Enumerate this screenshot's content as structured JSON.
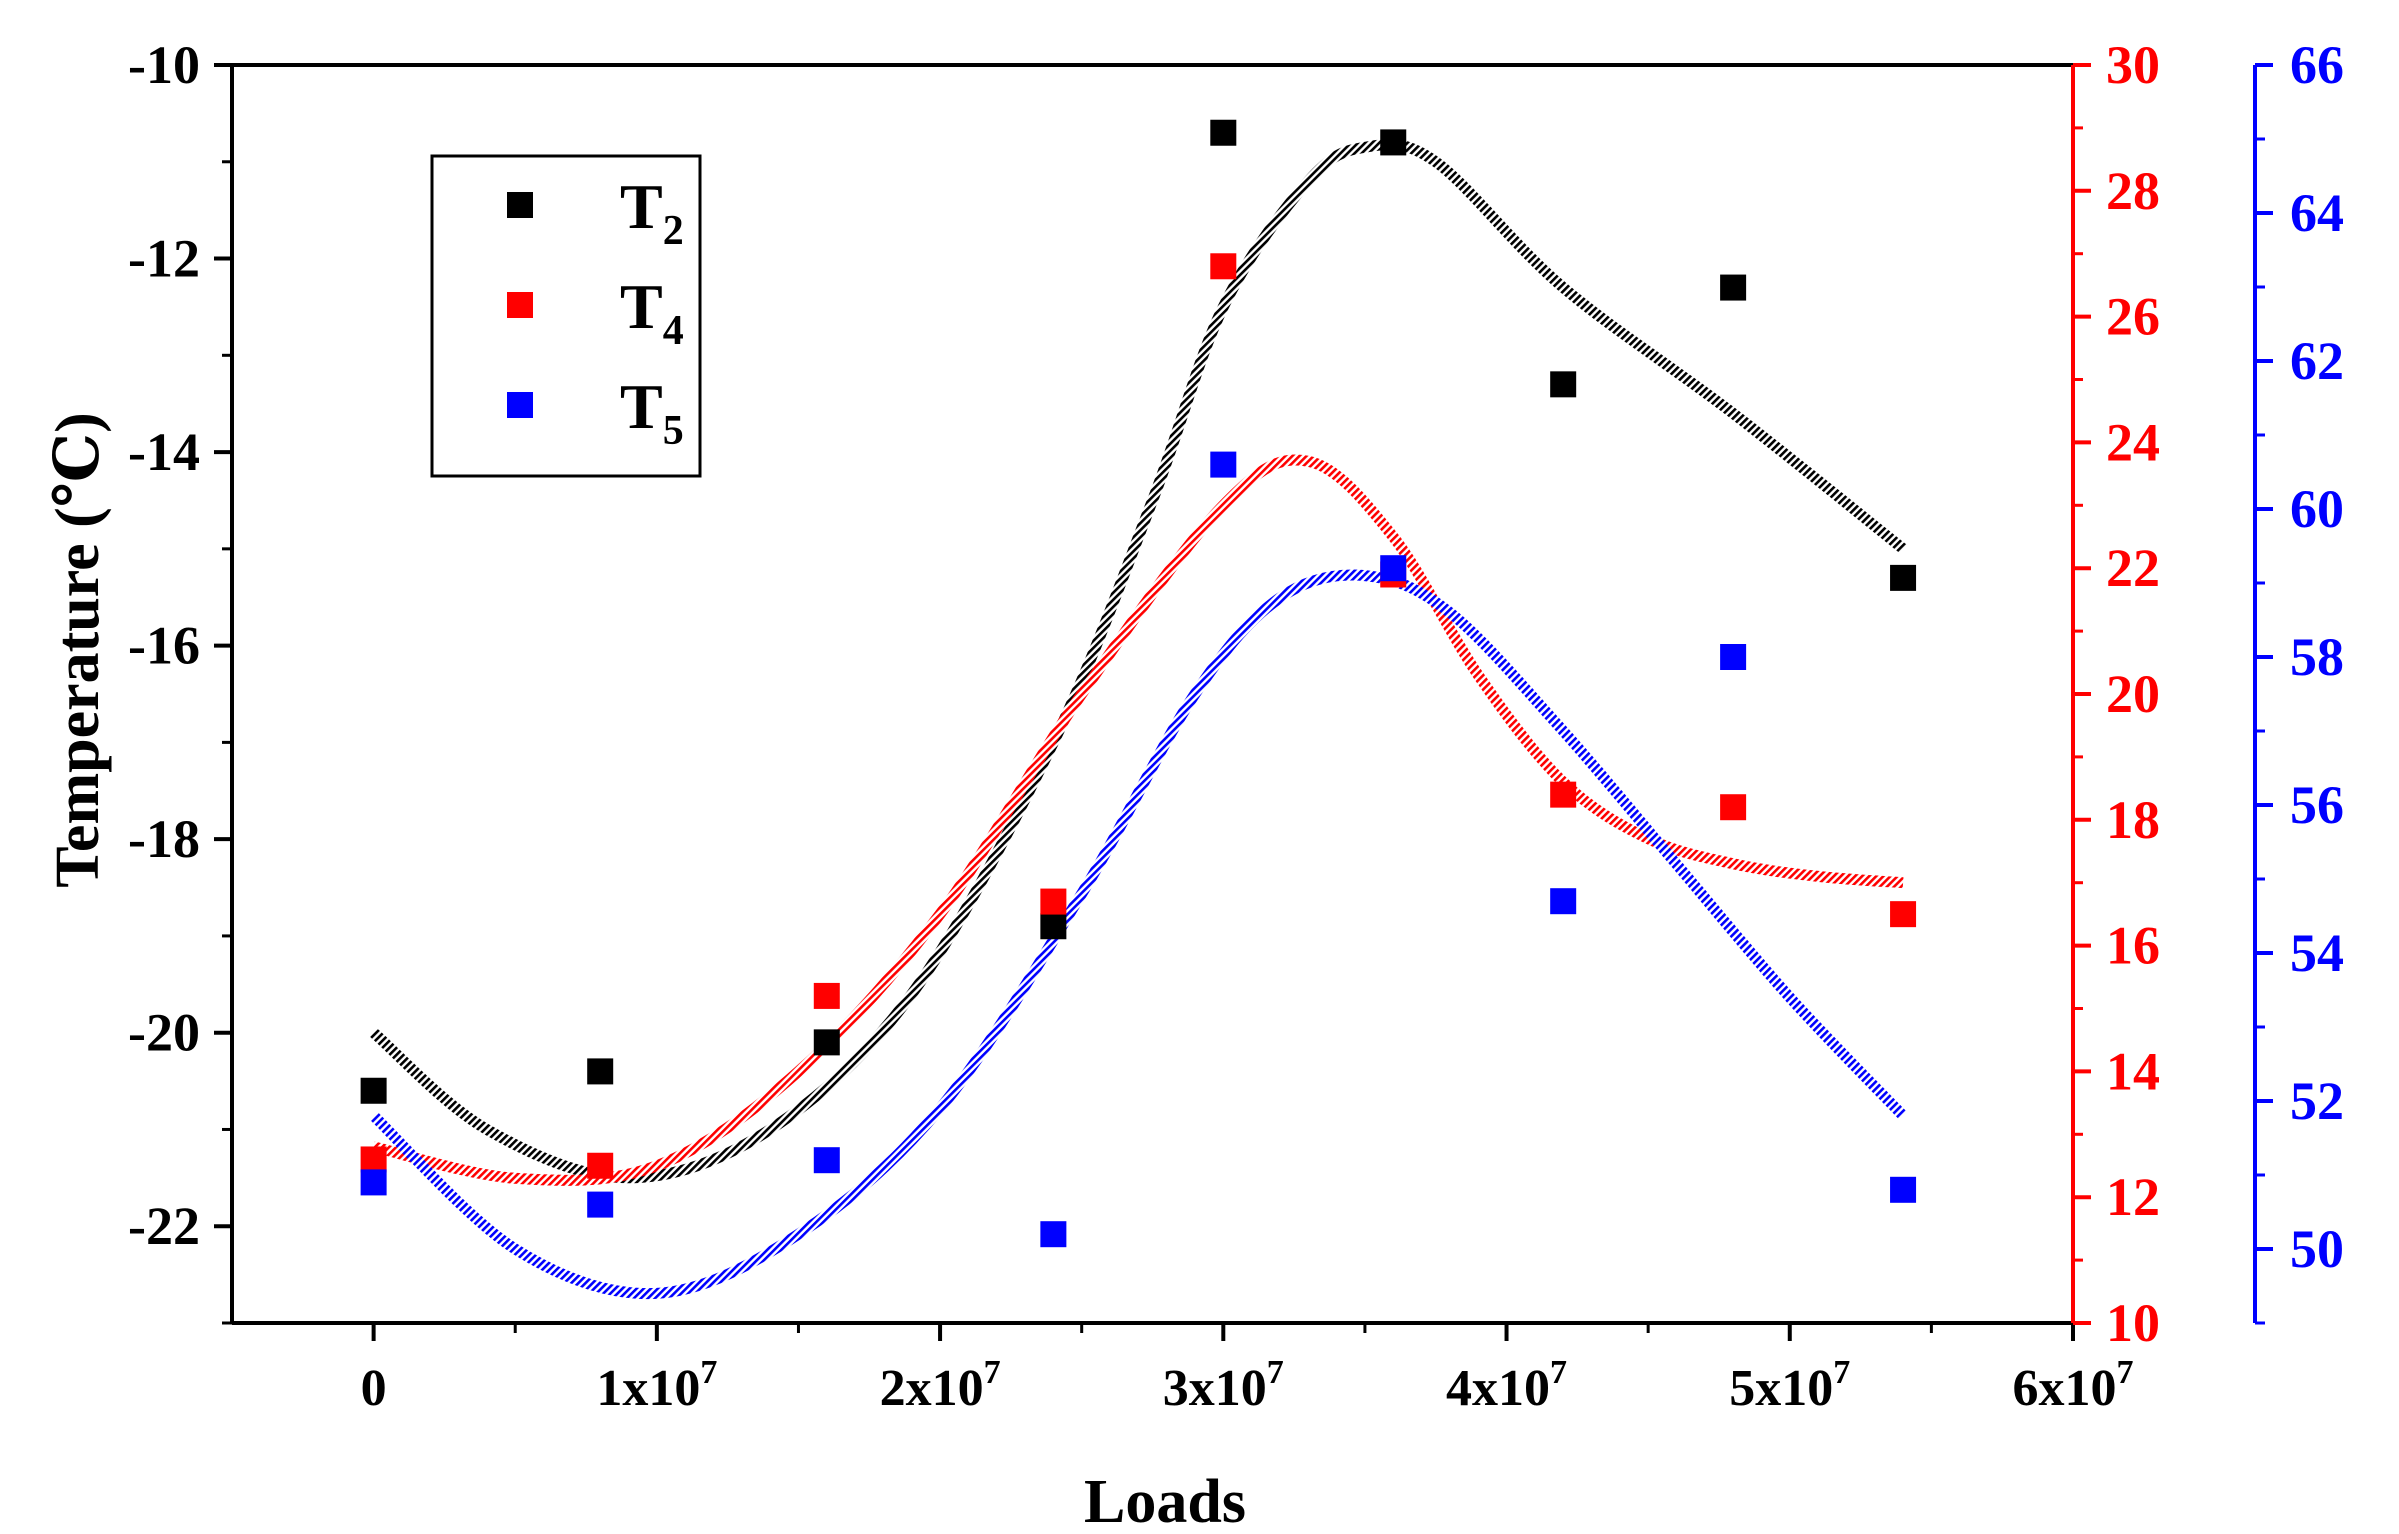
{
  "chart_data": {
    "type": "scatter",
    "title": "",
    "xlabel": "Loads",
    "ylabel": "Temperature (℃)",
    "xlim": [
      -5000000,
      60000000
    ],
    "x_ticks": [
      {
        "value": 0,
        "base": "0",
        "exp": ""
      },
      {
        "value": 10000000,
        "base": "1x10",
        "exp": "7"
      },
      {
        "value": 20000000,
        "base": "2x10",
        "exp": "7"
      },
      {
        "value": 30000000,
        "base": "3x10",
        "exp": "7"
      },
      {
        "value": 40000000,
        "base": "4x10",
        "exp": "7"
      },
      {
        "value": 50000000,
        "base": "5x10",
        "exp": "7"
      },
      {
        "value": 60000000,
        "base": "6x10",
        "exp": "7"
      }
    ],
    "axes": {
      "left": {
        "ylim": [
          -23,
          -10
        ],
        "ticks": [
          -22,
          -20,
          -18,
          -16,
          -14,
          -12,
          -10
        ],
        "color": "#000000"
      },
      "right1": {
        "ylim": [
          10,
          30
        ],
        "ticks": [
          10,
          12,
          14,
          16,
          18,
          20,
          22,
          24,
          26,
          28,
          30
        ],
        "color": "#ff0000"
      },
      "right2": {
        "ylim": [
          49,
          66
        ],
        "ticks": [
          50,
          52,
          54,
          56,
          58,
          60,
          62,
          64,
          66
        ],
        "color": "#0000ff"
      }
    },
    "legend": {
      "placement": "top-left",
      "entries": [
        {
          "base": "T",
          "sub": "2",
          "color": "#000000"
        },
        {
          "base": "T",
          "sub": "4",
          "color": "#ff0000"
        },
        {
          "base": "T",
          "sub": "5",
          "color": "#0000ff"
        }
      ]
    },
    "series": [
      {
        "name": "T2",
        "axis": "left",
        "color": "#000000",
        "x": [
          0,
          8000000,
          16000000,
          24000000,
          30000000,
          36000000,
          42000000,
          48000000,
          54000000
        ],
        "values": [
          -20.6,
          -20.4,
          -20.1,
          -18.9,
          -10.7,
          -10.8,
          -13.3,
          -12.3,
          -15.3
        ],
        "fit_x": [
          0,
          4000000,
          9000000,
          14000000,
          19000000,
          24000000,
          27500000,
          30000000,
          33000000,
          35000000,
          37500000,
          42000000,
          48000000,
          54000000
        ],
        "fit_y": [
          -20.0,
          -21.0,
          -21.5,
          -21.0,
          -19.6,
          -17.0,
          -14.5,
          -12.5,
          -11.2,
          -10.85,
          -11.0,
          -12.3,
          -13.6,
          -15.0
        ]
      },
      {
        "name": "T4",
        "axis": "right1",
        "color": "#ff0000",
        "x": [
          0,
          8000000,
          16000000,
          24000000,
          30000000,
          36000000,
          42000000,
          48000000,
          54000000
        ],
        "values": [
          12.6,
          12.5,
          15.2,
          16.7,
          26.8,
          21.9,
          18.4,
          18.2,
          16.5
        ],
        "fit_x": [
          0,
          5000000,
          10000000,
          15000000,
          20000000,
          25000000,
          30000000,
          33000000,
          36000000,
          39000000,
          42000000,
          45000000,
          48000000,
          51000000,
          54000000
        ],
        "fit_y": [
          12.8,
          12.3,
          12.5,
          14.0,
          16.5,
          20.0,
          23.0,
          23.7,
          22.5,
          20.3,
          18.6,
          17.7,
          17.3,
          17.1,
          17.0
        ]
      },
      {
        "name": "T5",
        "axis": "right2",
        "color": "#0000ff",
        "x": [
          0,
          8000000,
          16000000,
          24000000,
          30000000,
          36000000,
          42000000,
          48000000,
          54000000
        ],
        "values": [
          50.9,
          50.6,
          51.2,
          50.2,
          60.6,
          59.2,
          54.7,
          58.0,
          50.8
        ],
        "fit_x": [
          0,
          5000000,
          10000000,
          15000000,
          20000000,
          25000000,
          29000000,
          32000000,
          35000000,
          38000000,
          42000000,
          46000000,
          50000000,
          54000000
        ],
        "fit_y": [
          51.8,
          50.0,
          49.4,
          50.2,
          51.9,
          54.8,
          57.5,
          58.8,
          59.1,
          58.6,
          57.0,
          55.2,
          53.4,
          51.8
        ]
      }
    ]
  }
}
